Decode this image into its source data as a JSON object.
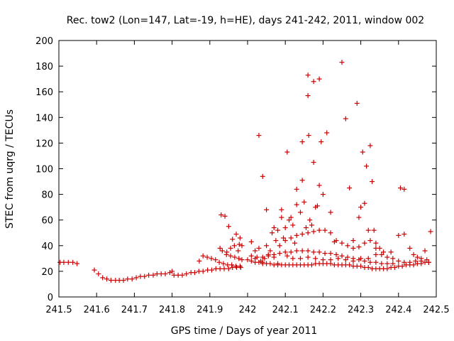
{
  "chart_data": {
    "type": "scatter",
    "title": "Rec. tow2 (Lon=147, Lat=-19, h=HE), days 241-242, 2011, window 002",
    "xlabel": "GPS time / Days of year 2011",
    "ylabel": "STEC from uqrg / TECUs",
    "xlim": [
      241.5,
      242.5
    ],
    "ylim": [
      0,
      200
    ],
    "xticks": [
      "241.5",
      "241.6",
      "241.7",
      "241.8",
      "241.9",
      "242",
      "242.1",
      "242.2",
      "242.3",
      "242.4",
      "242.5"
    ],
    "yticks": [
      "0",
      "20",
      "40",
      "60",
      "80",
      "100",
      "120",
      "140",
      "160",
      "180",
      "200"
    ],
    "grid": false,
    "marker": "+",
    "color": "#cc0000",
    "points": [
      [
        241.503,
        27
      ],
      [
        241.513,
        27
      ],
      [
        241.525,
        27
      ],
      [
        241.537,
        27
      ],
      [
        241.548,
        26
      ],
      [
        241.594,
        21
      ],
      [
        241.605,
        18
      ],
      [
        241.616,
        15
      ],
      [
        241.627,
        14
      ],
      [
        241.638,
        13
      ],
      [
        241.65,
        13
      ],
      [
        241.66,
        13
      ],
      [
        241.671,
        13
      ],
      [
        241.682,
        14
      ],
      [
        241.694,
        14
      ],
      [
        241.705,
        15
      ],
      [
        241.716,
        16
      ],
      [
        241.727,
        16
      ],
      [
        241.738,
        17
      ],
      [
        241.75,
        17
      ],
      [
        241.76,
        18
      ],
      [
        241.771,
        18
      ],
      [
        241.782,
        18
      ],
      [
        241.794,
        19
      ],
      [
        241.8,
        20
      ],
      [
        241.805,
        17
      ],
      [
        241.816,
        17
      ],
      [
        241.827,
        17
      ],
      [
        241.838,
        18
      ],
      [
        241.85,
        19
      ],
      [
        241.86,
        19
      ],
      [
        241.871,
        20
      ],
      [
        241.882,
        20
      ],
      [
        241.894,
        21
      ],
      [
        241.905,
        21
      ],
      [
        241.916,
        22
      ],
      [
        241.927,
        22
      ],
      [
        241.938,
        22
      ],
      [
        241.95,
        22
      ],
      [
        241.96,
        23
      ],
      [
        241.971,
        23
      ],
      [
        241.982,
        23
      ],
      [
        241.872,
        28
      ],
      [
        241.882,
        32
      ],
      [
        241.893,
        31
      ],
      [
        241.904,
        30
      ],
      [
        241.915,
        29
      ],
      [
        241.925,
        27
      ],
      [
        241.936,
        26
      ],
      [
        241.947,
        25
      ],
      [
        241.958,
        25
      ],
      [
        241.969,
        24
      ],
      [
        241.98,
        24
      ],
      [
        241.927,
        38
      ],
      [
        241.933,
        36
      ],
      [
        241.944,
        33
      ],
      [
        241.955,
        32
      ],
      [
        241.966,
        31
      ],
      [
        241.977,
        30
      ],
      [
        241.985,
        29
      ],
      [
        241.93,
        64
      ],
      [
        241.94,
        63
      ],
      [
        241.95,
        55
      ],
      [
        241.96,
        45
      ],
      [
        241.97,
        49
      ],
      [
        241.978,
        41
      ],
      [
        241.985,
        40
      ],
      [
        241.945,
        35
      ],
      [
        241.955,
        38
      ],
      [
        241.965,
        40
      ],
      [
        241.975,
        36
      ],
      [
        241.98,
        46
      ],
      [
        242.01,
        43
      ],
      [
        242.02,
        30
      ],
      [
        242.02,
        36
      ],
      [
        242.03,
        126
      ],
      [
        242.03,
        38
      ],
      [
        242.035,
        28
      ],
      [
        242.04,
        94
      ],
      [
        242.04,
        27
      ],
      [
        242.045,
        30
      ],
      [
        242.05,
        68
      ],
      [
        242.05,
        40
      ],
      [
        242.055,
        33
      ],
      [
        242.06,
        36
      ],
      [
        242.065,
        50
      ],
      [
        242.07,
        54
      ],
      [
        242.07,
        31
      ],
      [
        242.075,
        44
      ],
      [
        242.08,
        52
      ],
      [
        242.08,
        26
      ],
      [
        242.085,
        40
      ],
      [
        242.09,
        62
      ],
      [
        242.09,
        68
      ],
      [
        242.095,
        46
      ],
      [
        242.1,
        54
      ],
      [
        242.105,
        113
      ],
      [
        242.105,
        32
      ],
      [
        242.11,
        60
      ],
      [
        242.115,
        62
      ],
      [
        242.12,
        56
      ],
      [
        242.125,
        42
      ],
      [
        242.13,
        84
      ],
      [
        242.13,
        72
      ],
      [
        242.14,
        66
      ],
      [
        242.145,
        121
      ],
      [
        242.145,
        91
      ],
      [
        242.15,
        74
      ],
      [
        242.155,
        54
      ],
      [
        242.16,
        173
      ],
      [
        242.16,
        157
      ],
      [
        242.162,
        126
      ],
      [
        242.165,
        60
      ],
      [
        242.17,
        56
      ],
      [
        242.175,
        105
      ],
      [
        242.175,
        168
      ],
      [
        242.18,
        70
      ],
      [
        242.185,
        71
      ],
      [
        242.19,
        170
      ],
      [
        242.19,
        87
      ],
      [
        242.195,
        121
      ],
      [
        242.2,
        80
      ],
      [
        242.21,
        128
      ],
      [
        242.22,
        66
      ],
      [
        242.23,
        43
      ],
      [
        242.25,
        183
      ],
      [
        242.26,
        139
      ],
      [
        242.27,
        85
      ],
      [
        242.28,
        44
      ],
      [
        242.29,
        151
      ],
      [
        242.295,
        62
      ],
      [
        242.3,
        70
      ],
      [
        242.305,
        113
      ],
      [
        242.31,
        73
      ],
      [
        242.315,
        102
      ],
      [
        242.32,
        52
      ],
      [
        242.325,
        118
      ],
      [
        242.33,
        90
      ],
      [
        242.335,
        52
      ],
      [
        242.34,
        42
      ],
      [
        242.35,
        38
      ],
      [
        242.0,
        29
      ],
      [
        242.01,
        28
      ],
      [
        242.02,
        27
      ],
      [
        242.03,
        27
      ],
      [
        242.04,
        26
      ],
      [
        242.05,
        26
      ],
      [
        242.06,
        26
      ],
      [
        242.07,
        25
      ],
      [
        242.08,
        25
      ],
      [
        242.09,
        25
      ],
      [
        242.1,
        25
      ],
      [
        242.11,
        25
      ],
      [
        242.12,
        25
      ],
      [
        242.13,
        25
      ],
      [
        242.14,
        25
      ],
      [
        242.15,
        25
      ],
      [
        242.16,
        25
      ],
      [
        242.17,
        25
      ],
      [
        242.18,
        26
      ],
      [
        242.19,
        26
      ],
      [
        242.2,
        26
      ],
      [
        242.21,
        26
      ],
      [
        242.22,
        26
      ],
      [
        242.23,
        25
      ],
      [
        242.24,
        25
      ],
      [
        242.25,
        25
      ],
      [
        242.26,
        25
      ],
      [
        242.27,
        25
      ],
      [
        242.28,
        24
      ],
      [
        242.29,
        24
      ],
      [
        242.3,
        24
      ],
      [
        242.31,
        23
      ],
      [
        242.32,
        23
      ],
      [
        242.33,
        22
      ],
      [
        242.34,
        22
      ],
      [
        242.35,
        22
      ],
      [
        242.36,
        22
      ],
      [
        242.37,
        22
      ],
      [
        242.38,
        23
      ],
      [
        242.39,
        23
      ],
      [
        242.4,
        24
      ],
      [
        242.41,
        24
      ],
      [
        242.42,
        25
      ],
      [
        242.43,
        25
      ],
      [
        242.44,
        25
      ],
      [
        242.45,
        26
      ],
      [
        242.46,
        26
      ],
      [
        242.47,
        27
      ],
      [
        242.48,
        27
      ],
      [
        242.01,
        32
      ],
      [
        242.025,
        31
      ],
      [
        242.04,
        31
      ],
      [
        242.055,
        32
      ],
      [
        242.07,
        33
      ],
      [
        242.085,
        34
      ],
      [
        242.1,
        35
      ],
      [
        242.115,
        35
      ],
      [
        242.13,
        36
      ],
      [
        242.145,
        36
      ],
      [
        242.16,
        36
      ],
      [
        242.175,
        35
      ],
      [
        242.19,
        35
      ],
      [
        242.205,
        34
      ],
      [
        242.22,
        34
      ],
      [
        242.235,
        33
      ],
      [
        242.25,
        32
      ],
      [
        242.265,
        31
      ],
      [
        242.28,
        30
      ],
      [
        242.295,
        29
      ],
      [
        242.31,
        28
      ],
      [
        242.325,
        27
      ],
      [
        242.34,
        27
      ],
      [
        242.355,
        26
      ],
      [
        242.37,
        26
      ],
      [
        242.385,
        26
      ],
      [
        242.1,
        44
      ],
      [
        242.115,
        46
      ],
      [
        242.13,
        48
      ],
      [
        242.145,
        49
      ],
      [
        242.16,
        50
      ],
      [
        242.175,
        51
      ],
      [
        242.19,
        52
      ],
      [
        242.205,
        52
      ],
      [
        242.22,
        50
      ],
      [
        242.235,
        44
      ],
      [
        242.25,
        42
      ],
      [
        242.265,
        40
      ],
      [
        242.28,
        38
      ],
      [
        242.295,
        39
      ],
      [
        242.31,
        42
      ],
      [
        242.325,
        44
      ],
      [
        242.34,
        38
      ],
      [
        242.355,
        33
      ],
      [
        242.37,
        31
      ],
      [
        242.385,
        30
      ],
      [
        242.4,
        28
      ],
      [
        242.415,
        27
      ],
      [
        242.43,
        27
      ],
      [
        242.445,
        28
      ],
      [
        242.46,
        28
      ],
      [
        242.475,
        29
      ],
      [
        242.12,
        30
      ],
      [
        242.14,
        30
      ],
      [
        242.16,
        31
      ],
      [
        242.18,
        30
      ],
      [
        242.2,
        29
      ],
      [
        242.22,
        29
      ],
      [
        242.24,
        30
      ],
      [
        242.26,
        29
      ],
      [
        242.28,
        28
      ],
      [
        242.3,
        30
      ],
      [
        242.32,
        30
      ],
      [
        242.34,
        33
      ],
      [
        242.36,
        35
      ],
      [
        242.38,
        35
      ],
      [
        242.4,
        48
      ],
      [
        242.405,
        85
      ],
      [
        242.415,
        84
      ],
      [
        242.415,
        49
      ],
      [
        242.43,
        38
      ],
      [
        242.44,
        33
      ],
      [
        242.45,
        31
      ],
      [
        242.46,
        30
      ],
      [
        242.47,
        36
      ],
      [
        242.48,
        27
      ],
      [
        242.485,
        51
      ]
    ]
  }
}
